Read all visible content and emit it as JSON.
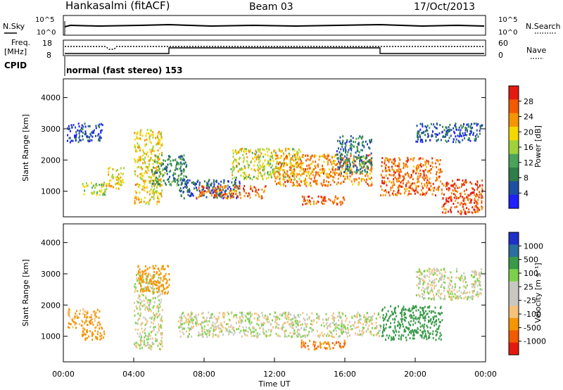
{
  "header": {
    "station": "Hankasalmi (fitACF)",
    "beam": "Beam 03",
    "date": "17/Oct/2013"
  },
  "noise_panel": {
    "left_label": "N.Sky",
    "right_label": "N.Search",
    "left_ticks": [
      "10^5",
      "10^0"
    ],
    "right_ticks": [
      "10^5",
      "10^0"
    ]
  },
  "freq_panel": {
    "left_label_1": "Freq.",
    "left_label_2": "[MHz]",
    "right_label": "Nave",
    "left_ticks": [
      "18",
      "8"
    ],
    "right_ticks": [
      "60",
      "0"
    ]
  },
  "cpid": {
    "label": "CPID",
    "text": "normal (fast stereo) 153"
  },
  "colors": {
    "power_scale": [
      "#1f1fff",
      "#1f4fa0",
      "#2e7d4a",
      "#4aa35a",
      "#9fd23a",
      "#f5d800",
      "#f59500",
      "#f25a00",
      "#e41a10"
    ],
    "velocity_scale": [
      "#e41a10",
      "#f25a00",
      "#f59500",
      "#f5c27a",
      "#c8c8c0",
      "#c8c8c0",
      "#7bd24a",
      "#3a9a4a",
      "#2a6fa0",
      "#1f2fc8"
    ],
    "ground_scatter": "#c8c8c0"
  },
  "chart_data": [
    {
      "type": "heatmap",
      "name": "power",
      "ylabel": "Slant Range [km]",
      "ylim": [
        180,
        4600
      ],
      "yticks": [
        "4000",
        "3000",
        "2000",
        "1000"
      ],
      "xlim_hours": [
        0,
        24
      ],
      "colorbar": {
        "label": "Power [dB]",
        "range": [
          0,
          32
        ],
        "ticks": [
          "28",
          "24",
          "20",
          "16",
          "12",
          "8",
          "4"
        ]
      },
      "scatter_regions": [
        {
          "t": [
            0.2,
            2.2
          ],
          "r": [
            2600,
            3200
          ],
          "value": 4
        },
        {
          "t": [
            1.0,
            2.4
          ],
          "r": [
            900,
            1300
          ],
          "value": 16
        },
        {
          "t": [
            2.4,
            3.4
          ],
          "r": [
            1100,
            1800
          ],
          "value": 20
        },
        {
          "t": [
            4.0,
            5.6
          ],
          "r": [
            600,
            3000
          ],
          "value": 20
        },
        {
          "t": [
            5.0,
            7.0
          ],
          "r": [
            1200,
            2200
          ],
          "value": 10
        },
        {
          "t": [
            6.5,
            10.0
          ],
          "r": [
            800,
            1400
          ],
          "value": 6
        },
        {
          "t": [
            7.5,
            11.5
          ],
          "r": [
            800,
            1200
          ],
          "value": 26
        },
        {
          "t": [
            9.5,
            13.5
          ],
          "r": [
            1400,
            2400
          ],
          "value": 18
        },
        {
          "t": [
            12.0,
            17.5
          ],
          "r": [
            1200,
            2200
          ],
          "value": 24
        },
        {
          "t": [
            13.5,
            16.0
          ],
          "r": [
            600,
            900
          ],
          "value": 26
        },
        {
          "t": [
            15.5,
            17.5
          ],
          "r": [
            1600,
            2800
          ],
          "value": 8
        },
        {
          "t": [
            18.0,
            21.5
          ],
          "r": [
            900,
            2100
          ],
          "value": 26
        },
        {
          "t": [
            20.0,
            23.8
          ],
          "r": [
            2600,
            3200
          ],
          "value": 6
        },
        {
          "t": [
            21.5,
            23.8
          ],
          "r": [
            300,
            1400
          ],
          "value": 28
        }
      ]
    },
    {
      "type": "heatmap",
      "name": "velocity",
      "ylabel": "Slant Range [km]",
      "xlabel": "Time UT",
      "ylim": [
        180,
        4600
      ],
      "yticks": [
        "4000",
        "3000",
        "2000",
        "1000"
      ],
      "xticks": [
        "00:00",
        "04:00",
        "08:00",
        "12:00",
        "16:00",
        "20:00",
        "00:00"
      ],
      "xlim_hours": [
        0,
        24
      ],
      "colorbar": {
        "label": "Velocity [m s⁻¹]",
        "ticks": [
          "1000",
          "500",
          "100",
          "25",
          "-25",
          "-100",
          "-500",
          "-1000"
        ]
      },
      "scatter_regions": [
        {
          "t": [
            0.2,
            2.2
          ],
          "r": [
            1300,
            1900
          ],
          "value": -100
        },
        {
          "t": [
            1.0,
            2.4
          ],
          "r": [
            900,
            1300
          ],
          "value": -300
        },
        {
          "t": [
            4.0,
            5.6
          ],
          "r": [
            600,
            3000
          ],
          "value": 0
        },
        {
          "t": [
            4.2,
            6.0
          ],
          "r": [
            2400,
            3300
          ],
          "value": -400
        },
        {
          "t": [
            6.5,
            18.0
          ],
          "r": [
            1000,
            1800
          ],
          "value": 0
        },
        {
          "t": [
            13.5,
            16.0
          ],
          "r": [
            600,
            900
          ],
          "value": -500
        },
        {
          "t": [
            18.0,
            21.5
          ],
          "r": [
            900,
            2000
          ],
          "value": 200
        },
        {
          "t": [
            20.0,
            23.8
          ],
          "r": [
            2200,
            3200
          ],
          "value": 0
        }
      ]
    }
  ]
}
